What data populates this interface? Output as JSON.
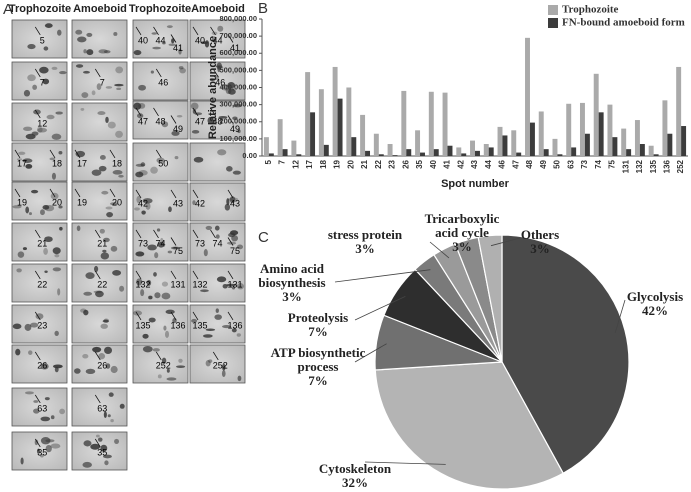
{
  "gels": {
    "panel_label": "A",
    "headers": [
      "Trophozoite",
      "Amoeboid",
      "Trophozoite",
      "Amoeboid"
    ],
    "left": [
      [
        [
          "5"
        ],
        []
      ],
      [
        [
          "7"
        ],
        [
          "7"
        ]
      ],
      [
        [
          "12"
        ],
        []
      ],
      [
        [
          "17",
          "18"
        ],
        [
          "17",
          "18"
        ]
      ],
      [
        [
          "19",
          "20"
        ],
        [
          "19",
          "20"
        ]
      ],
      [
        [
          "21"
        ],
        [
          "21"
        ]
      ],
      [
        [
          "22"
        ],
        [
          "22"
        ]
      ],
      [
        [
          "23"
        ],
        []
      ],
      [
        [
          "26"
        ],
        [
          "26"
        ]
      ],
      [
        [
          "63"
        ],
        [
          "63"
        ]
      ],
      [
        [
          "35"
        ],
        [
          "35"
        ]
      ]
    ],
    "right": [
      [
        [
          "40",
          "44",
          "41"
        ],
        [
          "40",
          "44",
          "41"
        ]
      ],
      [
        [
          "46"
        ],
        [
          "46"
        ]
      ],
      [
        [
          "47",
          "48",
          "49"
        ],
        [
          "47",
          "48",
          "49"
        ]
      ],
      [
        [
          "50"
        ],
        []
      ],
      [
        [
          "42",
          "43"
        ],
        [
          "42",
          "43"
        ]
      ],
      [
        [
          "73",
          "74",
          "75"
        ],
        [
          "73",
          "74",
          "75"
        ]
      ],
      [
        [
          "132",
          "131"
        ],
        [
          "132",
          "131"
        ]
      ],
      [
        [
          "135",
          "136"
        ],
        [
          "135",
          "136"
        ]
      ],
      [
        [
          "252"
        ],
        [
          "252"
        ]
      ]
    ]
  },
  "chart_data": [
    {
      "type": "bar",
      "panel_label": "B",
      "ylabel": "Relative abundance",
      "xlabel": "Spot number",
      "categories": [
        "5",
        "7",
        "12",
        "17",
        "18",
        "19",
        "20",
        "21",
        "22",
        "23",
        "26",
        "35",
        "40",
        "41",
        "42",
        "43",
        "44",
        "46",
        "47",
        "48",
        "49",
        "50",
        "63",
        "73",
        "74",
        "75",
        "131",
        "132",
        "135",
        "136",
        "252"
      ],
      "series": [
        {
          "name": "Trophozoite",
          "color": "#aaaaaa",
          "values": [
            110000,
            215000,
            90000,
            490000,
            390000,
            520000,
            400000,
            240000,
            130000,
            70000,
            380000,
            150000,
            375000,
            370000,
            50000,
            90000,
            70000,
            170000,
            150000,
            690000,
            260000,
            100000,
            305000,
            310000,
            480000,
            300000,
            160000,
            210000,
            60000,
            325000,
            520000
          ]
        },
        {
          "name": "FN-bound amoeboid form",
          "color": "#3c3c3c",
          "values": [
            15000,
            40000,
            10000,
            255000,
            65000,
            335000,
            110000,
            30000,
            10000,
            5000,
            40000,
            20000,
            40000,
            60000,
            15000,
            30000,
            50000,
            120000,
            20000,
            195000,
            40000,
            10000,
            50000,
            130000,
            255000,
            110000,
            40000,
            70000,
            10000,
            130000,
            175000
          ]
        }
      ],
      "ylim": [
        0,
        800000
      ],
      "yticks": [
        {
          "value": 0,
          "label": "0.00"
        },
        {
          "value": 100000,
          "label": "100,000.00"
        },
        {
          "value": 200000,
          "label": "200,000.00"
        },
        {
          "value": 300000,
          "label": "300,000.00"
        },
        {
          "value": 400000,
          "label": "400,000.00"
        },
        {
          "value": 500000,
          "label": "500,000.00"
        },
        {
          "value": 600000,
          "label": "600,000.00"
        },
        {
          "value": 700000,
          "label": "700,000.00"
        },
        {
          "value": 800000,
          "label": "800,000.00"
        }
      ],
      "legend": "top-right"
    },
    {
      "type": "pie",
      "panel_label": "C",
      "categories": [
        "Glycolysis",
        "Cytoskeleton",
        "ATP biosynthetic process",
        "Proteolysis",
        "Amino acid biosynthesis",
        "stress protein",
        "Tricarboxylic acid cycle",
        "Others"
      ],
      "values": [
        42,
        32,
        7,
        7,
        3,
        3,
        3,
        3
      ],
      "value_labels": [
        "42%",
        "32%",
        "7%",
        "7%",
        "3%",
        "3%",
        "3%",
        "3%"
      ],
      "colors": [
        "#4a4a4a",
        "#b4b4b4",
        "#707070",
        "#2e2e2e",
        "#7a7a7a",
        "#9a9a9a",
        "#8a8a8a",
        "#b0b0b0"
      ]
    }
  ]
}
